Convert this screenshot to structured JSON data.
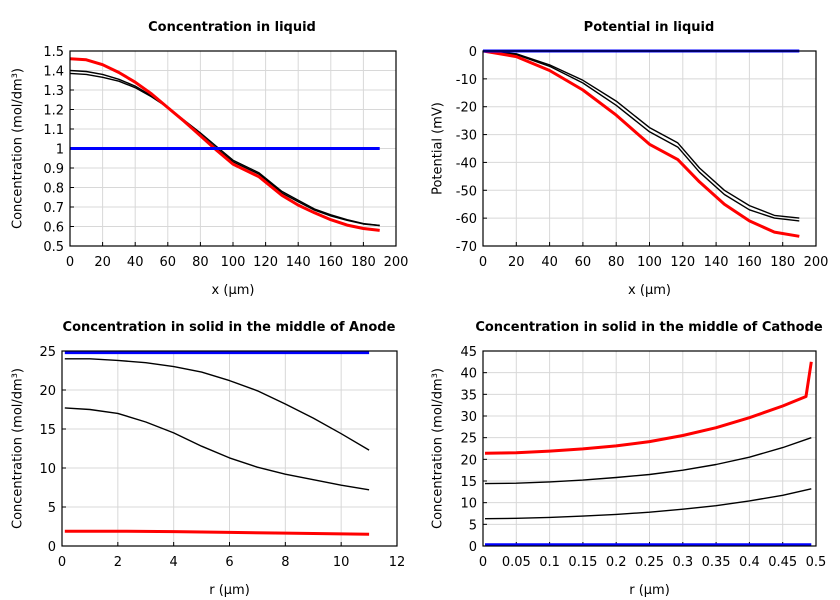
{
  "chart_data": [
    {
      "type": "line",
      "title": "Concentration in liquid",
      "xlabel": "x (µm)",
      "ylabel": "Concentration (mol/dm³)",
      "xlim": [
        0,
        200
      ],
      "ylim": [
        0.5,
        1.5
      ],
      "xticks": [
        0,
        20,
        40,
        60,
        80,
        100,
        120,
        140,
        160,
        180,
        200
      ],
      "yticks": [
        0.5,
        0.6,
        0.7,
        0.8,
        0.9,
        1,
        1.1,
        1.2,
        1.3,
        1.4,
        1.5
      ],
      "grid": true,
      "series": [
        {
          "color": "#000000",
          "points": [
            [
              0,
              1.4
            ],
            [
              10,
              1.395
            ],
            [
              20,
              1.38
            ],
            [
              30,
              1.355
            ],
            [
              40,
              1.32
            ],
            [
              50,
              1.27
            ],
            [
              60,
              1.21
            ],
            [
              70,
              1.145
            ],
            [
              80,
              1.08
            ],
            [
              90,
              1.01
            ],
            [
              100,
              0.94
            ],
            [
              116,
              0.875
            ],
            [
              130,
              0.78
            ],
            [
              140,
              0.735
            ],
            [
              150,
              0.69
            ],
            [
              160,
              0.66
            ],
            [
              170,
              0.635
            ],
            [
              180,
              0.615
            ],
            [
              190,
              0.605
            ]
          ]
        },
        {
          "color": "#000000",
          "points": [
            [
              0,
              1.385
            ],
            [
              10,
              1.38
            ],
            [
              20,
              1.365
            ],
            [
              30,
              1.345
            ],
            [
              40,
              1.312
            ],
            [
              50,
              1.265
            ],
            [
              60,
              1.21
            ],
            [
              70,
              1.14
            ],
            [
              80,
              1.072
            ],
            [
              90,
              1.0
            ],
            [
              100,
              0.932
            ],
            [
              116,
              0.868
            ],
            [
              130,
              0.772
            ],
            [
              140,
              0.727
            ],
            [
              150,
              0.684
            ],
            [
              160,
              0.654
            ],
            [
              170,
              0.632
            ],
            [
              180,
              0.613
            ],
            [
              190,
              0.605
            ]
          ]
        },
        {
          "color": "#ff0000",
          "points": [
            [
              0,
              1.46
            ],
            [
              10,
              1.455
            ],
            [
              20,
              1.43
            ],
            [
              30,
              1.39
            ],
            [
              40,
              1.34
            ],
            [
              50,
              1.28
            ],
            [
              60,
              1.21
            ],
            [
              70,
              1.14
            ],
            [
              80,
              1.065
            ],
            [
              90,
              0.99
            ],
            [
              100,
              0.92
            ],
            [
              116,
              0.855
            ],
            [
              130,
              0.76
            ],
            [
              140,
              0.71
            ],
            [
              150,
              0.67
            ],
            [
              160,
              0.635
            ],
            [
              170,
              0.607
            ],
            [
              180,
              0.59
            ],
            [
              190,
              0.58
            ]
          ]
        },
        {
          "color": "#0000ff",
          "points": [
            [
              0,
              1.0
            ],
            [
              190,
              1.0
            ]
          ]
        }
      ]
    },
    {
      "type": "line",
      "title": "Potential in liquid",
      "xlabel": "x (µm)",
      "ylabel": "Potential (mV)",
      "xlim": [
        0,
        200
      ],
      "ylim": [
        -70,
        0
      ],
      "xticks": [
        0,
        20,
        40,
        60,
        80,
        100,
        120,
        140,
        160,
        180,
        200
      ],
      "yticks": [
        -70,
        -60,
        -50,
        -40,
        -30,
        -20,
        -10,
        0
      ],
      "grid": true,
      "series": [
        {
          "color": "#000000",
          "points": [
            [
              0,
              0
            ],
            [
              20,
              -1
            ],
            [
              40,
              -5
            ],
            [
              60,
              -10.5
            ],
            [
              80,
              -18
            ],
            [
              100,
              -27.5
            ],
            [
              117,
              -33
            ],
            [
              130,
              -42
            ],
            [
              145,
              -50
            ],
            [
              160,
              -55.5
            ],
            [
              175,
              -59
            ],
            [
              190,
              -60
            ]
          ]
        },
        {
          "color": "#000000",
          "points": [
            [
              0,
              0
            ],
            [
              20,
              -1.3
            ],
            [
              40,
              -5.5
            ],
            [
              60,
              -11.5
            ],
            [
              80,
              -19.5
            ],
            [
              100,
              -29
            ],
            [
              117,
              -34.5
            ],
            [
              130,
              -43.5
            ],
            [
              145,
              -51.5
            ],
            [
              160,
              -57
            ],
            [
              175,
              -60
            ],
            [
              190,
              -61
            ]
          ]
        },
        {
          "color": "#ff0000",
          "points": [
            [
              0,
              0
            ],
            [
              20,
              -2
            ],
            [
              40,
              -7
            ],
            [
              60,
              -14
            ],
            [
              80,
              -23
            ],
            [
              100,
              -33.5
            ],
            [
              117,
              -39
            ],
            [
              130,
              -47
            ],
            [
              145,
              -55
            ],
            [
              160,
              -61
            ],
            [
              175,
              -65
            ],
            [
              190,
              -66.5
            ]
          ]
        },
        {
          "color": "#0000ff",
          "points": [
            [
              0,
              0
            ],
            [
              190,
              0
            ]
          ]
        }
      ]
    },
    {
      "type": "line",
      "title": "Concentration in solid in the middle of Anode",
      "xlabel": "r (µm)",
      "ylabel": "Concentration (mol/dm³)",
      "xlim": [
        0,
        12
      ],
      "ylim": [
        0,
        25
      ],
      "xticks": [
        0,
        2,
        4,
        6,
        8,
        10,
        12
      ],
      "yticks": [
        0,
        5,
        10,
        15,
        20,
        25
      ],
      "grid": true,
      "series": [
        {
          "color": "#000000",
          "points": [
            [
              0.1,
              24.0
            ],
            [
              1,
              24.0
            ],
            [
              2,
              23.8
            ],
            [
              3,
              23.5
            ],
            [
              4,
              23.0
            ],
            [
              5,
              22.3
            ],
            [
              6,
              21.2
            ],
            [
              7,
              19.9
            ],
            [
              8,
              18.2
            ],
            [
              9,
              16.4
            ],
            [
              10,
              14.4
            ],
            [
              11,
              12.3
            ]
          ]
        },
        {
          "color": "#000000",
          "points": [
            [
              0.1,
              17.7
            ],
            [
              1,
              17.5
            ],
            [
              2,
              17.0
            ],
            [
              3,
              15.9
            ],
            [
              4,
              14.5
            ],
            [
              5,
              12.8
            ],
            [
              6,
              11.3
            ],
            [
              7,
              10.1
            ],
            [
              8,
              9.2
            ],
            [
              9,
              8.5
            ],
            [
              10,
              7.8
            ],
            [
              11,
              7.2
            ]
          ]
        },
        {
          "color": "#ff0000",
          "points": [
            [
              0.1,
              1.9
            ],
            [
              2,
              1.9
            ],
            [
              4,
              1.85
            ],
            [
              6,
              1.75
            ],
            [
              8,
              1.65
            ],
            [
              10,
              1.55
            ],
            [
              11,
              1.5
            ]
          ]
        },
        {
          "color": "#0000ff",
          "points": [
            [
              0.1,
              24.8
            ],
            [
              11,
              24.8
            ]
          ]
        }
      ]
    },
    {
      "type": "line",
      "title": "Concentration in solid in the middle of Cathode",
      "xlabel": "r (µm)",
      "ylabel": "Concentration (mol/dm³)",
      "xlim": [
        0,
        0.5
      ],
      "ylim": [
        0,
        45
      ],
      "xticks": [
        0,
        0.05,
        0.1,
        0.15,
        0.2,
        0.25,
        0.3,
        0.35,
        0.4,
        0.45,
        0.5
      ],
      "yticks": [
        0,
        5,
        10,
        15,
        20,
        25,
        30,
        35,
        40,
        45
      ],
      "grid": true,
      "series": [
        {
          "color": "#000000",
          "points": [
            [
              0.003,
              14.4
            ],
            [
              0.05,
              14.5
            ],
            [
              0.1,
              14.8
            ],
            [
              0.15,
              15.2
            ],
            [
              0.2,
              15.8
            ],
            [
              0.25,
              16.5
            ],
            [
              0.3,
              17.5
            ],
            [
              0.35,
              18.8
            ],
            [
              0.4,
              20.5
            ],
            [
              0.45,
              22.7
            ],
            [
              0.493,
              25.0
            ]
          ]
        },
        {
          "color": "#000000",
          "points": [
            [
              0.003,
              6.3
            ],
            [
              0.05,
              6.4
            ],
            [
              0.1,
              6.6
            ],
            [
              0.15,
              6.9
            ],
            [
              0.2,
              7.3
            ],
            [
              0.25,
              7.8
            ],
            [
              0.3,
              8.5
            ],
            [
              0.35,
              9.3
            ],
            [
              0.4,
              10.4
            ],
            [
              0.45,
              11.7
            ],
            [
              0.493,
              13.2
            ]
          ]
        },
        {
          "color": "#ff0000",
          "points": [
            [
              0.003,
              21.4
            ],
            [
              0.05,
              21.5
            ],
            [
              0.1,
              21.9
            ],
            [
              0.15,
              22.4
            ],
            [
              0.2,
              23.1
            ],
            [
              0.25,
              24.1
            ],
            [
              0.3,
              25.5
            ],
            [
              0.35,
              27.3
            ],
            [
              0.4,
              29.6
            ],
            [
              0.45,
              32.3
            ],
            [
              0.485,
              34.5
            ],
            [
              0.493,
              42.5
            ]
          ]
        },
        {
          "color": "#0000ff",
          "points": [
            [
              0.003,
              0.3
            ],
            [
              0.493,
              0.3
            ]
          ]
        }
      ]
    }
  ]
}
